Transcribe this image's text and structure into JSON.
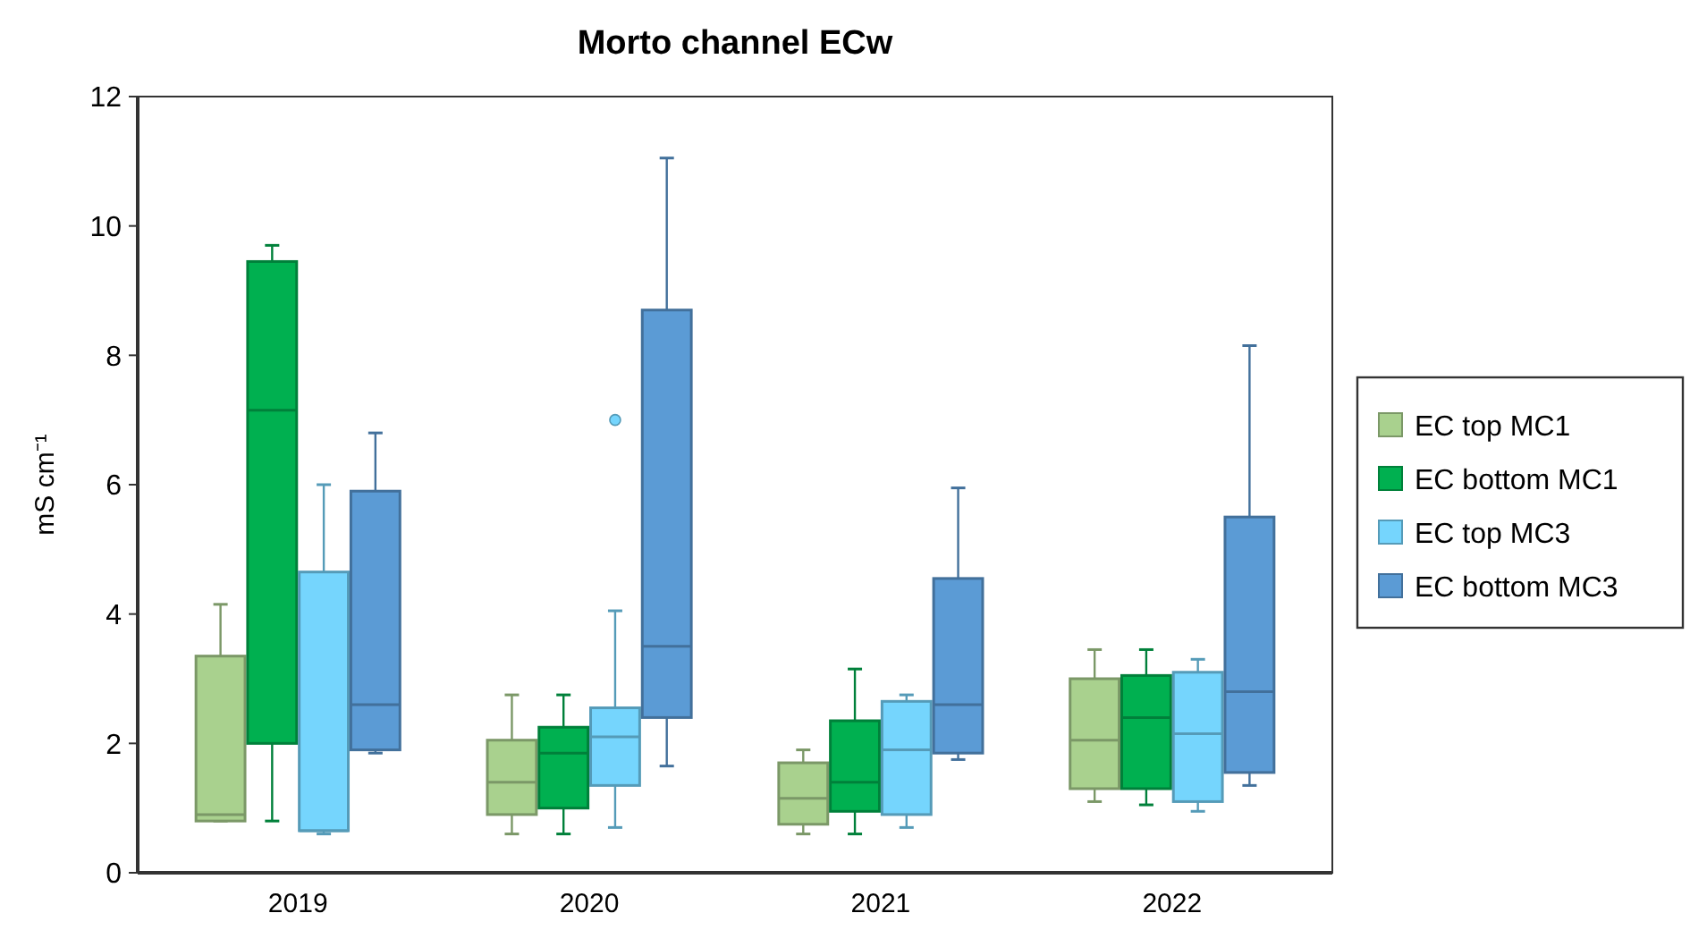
{
  "chart_data": {
    "type": "box",
    "title": "Morto channel ECw",
    "ylabel": "mS cm⁻¹",
    "categories": [
      "2019",
      "2020",
      "2021",
      "2022"
    ],
    "ylim": [
      0,
      12
    ],
    "yticks": [
      0,
      2,
      4,
      6,
      8,
      10,
      12
    ],
    "legend": "right",
    "grid": false,
    "series": [
      {
        "name": "EC top MC1",
        "color": "#a9d18e",
        "boxes": [
          {
            "low": 0.8,
            "q1": 0.8,
            "median": 0.9,
            "q3": 3.35,
            "high": 4.15
          },
          {
            "low": 0.6,
            "q1": 0.9,
            "median": 1.4,
            "q3": 2.05,
            "high": 2.75
          },
          {
            "low": 0.6,
            "q1": 0.75,
            "median": 1.15,
            "q3": 1.7,
            "high": 1.9
          },
          {
            "low": 1.1,
            "q1": 1.3,
            "median": 2.05,
            "q3": 3.0,
            "high": 3.45
          }
        ]
      },
      {
        "name": "EC bottom MC1",
        "color": "#00b050",
        "boxes": [
          {
            "low": 0.8,
            "q1": 2.0,
            "median": 7.15,
            "q3": 9.45,
            "high": 9.7
          },
          {
            "low": 0.6,
            "q1": 1.0,
            "median": 1.85,
            "q3": 2.25,
            "high": 2.75
          },
          {
            "low": 0.6,
            "q1": 0.95,
            "median": 1.4,
            "q3": 2.35,
            "high": 3.15
          },
          {
            "low": 1.05,
            "q1": 1.3,
            "median": 2.4,
            "q3": 3.05,
            "high": 3.45
          }
        ]
      },
      {
        "name": "EC top MC3",
        "color": "#75d5fd",
        "boxes": [
          {
            "low": 0.6,
            "q1": 0.65,
            "median": 0.65,
            "q3": 4.65,
            "high": 6.0
          },
          {
            "low": 0.7,
            "q1": 1.35,
            "median": 2.1,
            "q3": 2.55,
            "high": 4.05,
            "outliers": [
              7.0
            ]
          },
          {
            "low": 0.7,
            "q1": 0.9,
            "median": 1.9,
            "q3": 2.65,
            "high": 2.75
          },
          {
            "low": 0.95,
            "q1": 1.1,
            "median": 2.15,
            "q3": 3.1,
            "high": 3.3
          }
        ]
      },
      {
        "name": "EC bottom MC3",
        "color": "#5b9bd5",
        "boxes": [
          {
            "low": 1.85,
            "q1": 1.9,
            "median": 2.6,
            "q3": 5.9,
            "high": 6.8
          },
          {
            "low": 1.65,
            "q1": 2.4,
            "median": 3.5,
            "q3": 8.7,
            "high": 11.05
          },
          {
            "low": 1.75,
            "q1": 1.85,
            "median": 2.6,
            "q3": 4.55,
            "high": 5.95
          },
          {
            "low": 1.35,
            "q1": 1.55,
            "median": 2.8,
            "q3": 5.5,
            "high": 8.15
          }
        ]
      }
    ]
  }
}
